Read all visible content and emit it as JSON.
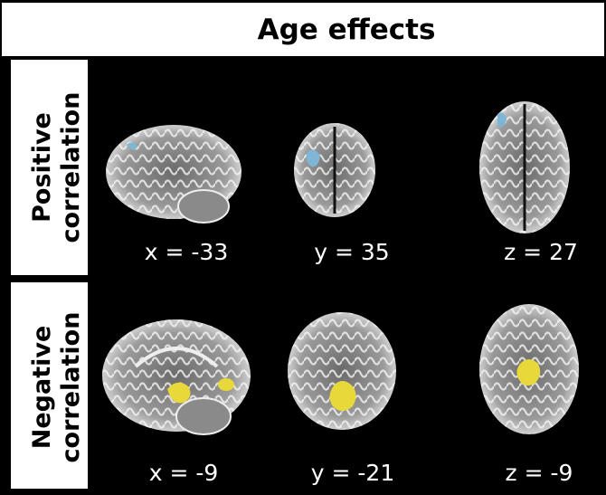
{
  "title": "Age effects",
  "rows": [
    {
      "label": [
        "Positive",
        "correlation"
      ],
      "slices": [
        "x = -33",
        "y = 35",
        "z = 27"
      ]
    },
    {
      "label": [
        "Negative",
        "correlation"
      ],
      "slices": [
        "x = -9",
        "y = -21",
        "z = -9"
      ]
    }
  ]
}
